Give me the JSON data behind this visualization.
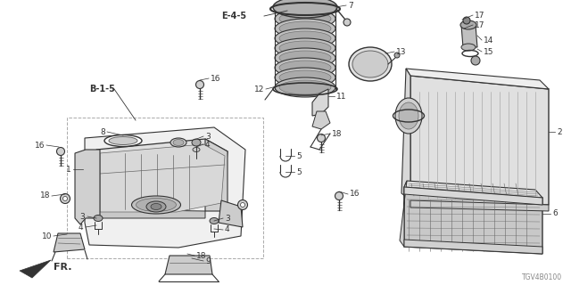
{
  "bg_color": "#ffffff",
  "diagram_code": "TGV4B0100",
  "fr_label": "FR.",
  "line_color": "#333333",
  "mid_color": "#666666",
  "light_color": "#aaaaaa",
  "fill_light": "#e8e8e8",
  "fill_mid": "#cccccc",
  "fill_dark": "#999999"
}
